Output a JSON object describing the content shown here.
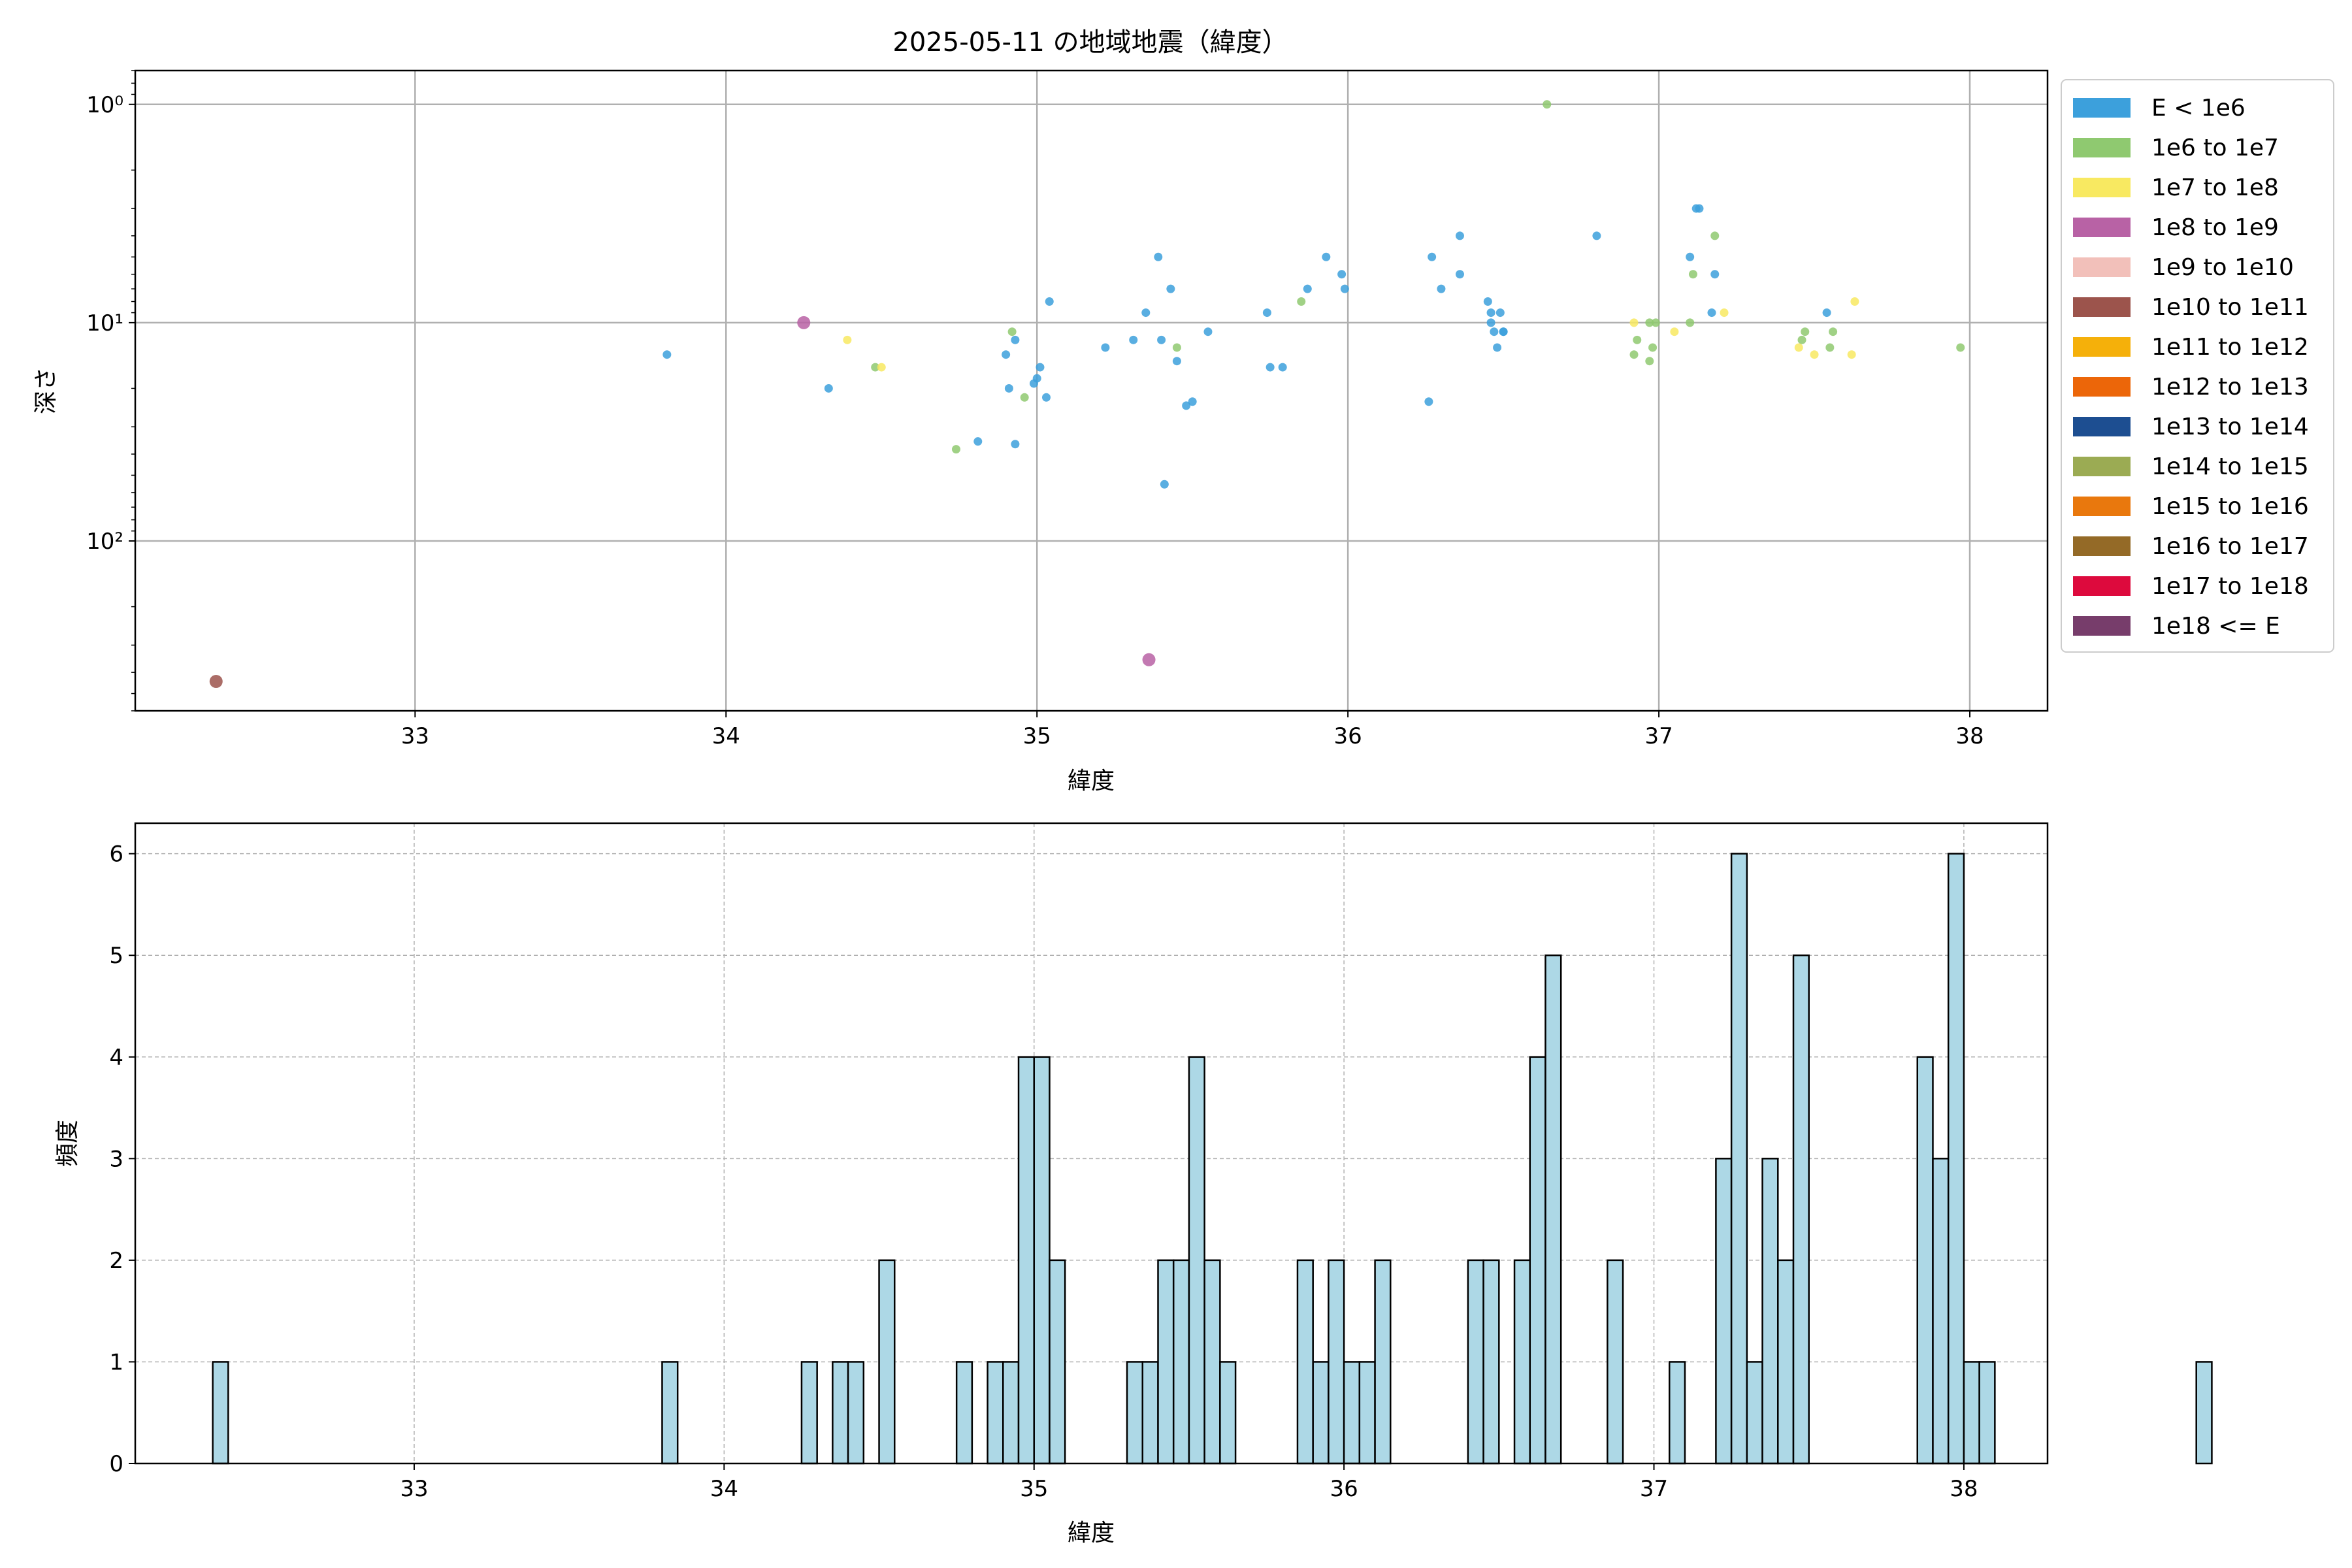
{
  "figure": {
    "title": "2025-05-11 の地域地震（緯度）"
  },
  "chart_data": [
    {
      "type": "scatter",
      "title": "2025-05-11 の地域地震（緯度）",
      "xlabel": "緯度",
      "ylabel": "深さ",
      "xlim": [
        32.1,
        38.25
      ],
      "y_scale": "log",
      "y_inverted": true,
      "ylim": [
        600,
        0.7
      ],
      "x_ticks": [
        33,
        34,
        35,
        36,
        37,
        38
      ],
      "y_ticks": [
        {
          "value": 1,
          "label": "10⁰"
        },
        {
          "value": 10,
          "label": "10¹"
        },
        {
          "value": 100,
          "label": "10²"
        }
      ],
      "grid": true,
      "legend": {
        "placement": "outside-right",
        "entries": [
          {
            "label": "E < 1e6",
            "color": "#3ca0dc"
          },
          {
            "label": "1e6 to 1e7",
            "color": "#8fc970"
          },
          {
            "label": "1e7 to 1e8",
            "color": "#f8e961"
          },
          {
            "label": "1e8 to 1e9",
            "color": "#b862a5"
          },
          {
            "label": "1e9 to 1e10",
            "color": "#f2c0ba"
          },
          {
            "label": "1e10 to 1e11",
            "color": "#9c544c"
          },
          {
            "label": "1e11 to 1e12",
            "color": "#f5b00a"
          },
          {
            "label": "1e12 to 1e13",
            "color": "#ec6609"
          },
          {
            "label": "1e13 to 1e14",
            "color": "#1d4e91"
          },
          {
            "label": "1e14 to 1e15",
            "color": "#9bab53"
          },
          {
            "label": "1e15 to 1e16",
            "color": "#e9780d"
          },
          {
            "label": "1e16 to 1e17",
            "color": "#946a27"
          },
          {
            "label": "1e17 to 1e18",
            "color": "#dd0a3d"
          },
          {
            "label": "1e18 <= E",
            "color": "#773d6b"
          }
        ]
      },
      "series": [
        {
          "category": 0,
          "points": [
            [
              33.81,
              14
            ],
            [
              34.33,
              20
            ],
            [
              34.81,
              35
            ],
            [
              34.9,
              14
            ],
            [
              34.91,
              20
            ],
            [
              34.93,
              12
            ],
            [
              34.93,
              36
            ],
            [
              34.99,
              19
            ],
            [
              35.0,
              18
            ],
            [
              35.01,
              16
            ],
            [
              35.03,
              22
            ],
            [
              35.04,
              8
            ],
            [
              35.22,
              13
            ],
            [
              35.31,
              12
            ],
            [
              35.35,
              9
            ],
            [
              35.39,
              5
            ],
            [
              35.4,
              12
            ],
            [
              35.41,
              55
            ],
            [
              35.43,
              7
            ],
            [
              35.45,
              15
            ],
            [
              35.48,
              24
            ],
            [
              35.5,
              23
            ],
            [
              35.55,
              11
            ],
            [
              35.74,
              9
            ],
            [
              35.75,
              16
            ],
            [
              35.79,
              16
            ],
            [
              35.87,
              7
            ],
            [
              35.93,
              5
            ],
            [
              35.98,
              6
            ],
            [
              35.99,
              7
            ],
            [
              36.26,
              23
            ],
            [
              36.27,
              5
            ],
            [
              36.3,
              7
            ],
            [
              36.36,
              4
            ],
            [
              36.36,
              6
            ],
            [
              36.45,
              8
            ],
            [
              36.46,
              9
            ],
            [
              36.46,
              10
            ],
            [
              36.47,
              11
            ],
            [
              36.48,
              13
            ],
            [
              36.49,
              9
            ],
            [
              36.5,
              11
            ],
            [
              36.5,
              11
            ],
            [
              36.8,
              4
            ],
            [
              37.1,
              5
            ],
            [
              37.12,
              3
            ],
            [
              37.13,
              3
            ],
            [
              37.17,
              9
            ],
            [
              37.18,
              6
            ],
            [
              37.54,
              9
            ]
          ]
        },
        {
          "category": 1,
          "points": [
            [
              34.48,
              16
            ],
            [
              34.74,
              38
            ],
            [
              34.92,
              11
            ],
            [
              34.96,
              22
            ],
            [
              35.45,
              13
            ],
            [
              35.85,
              8
            ],
            [
              36.64,
              1
            ],
            [
              36.92,
              14
            ],
            [
              36.93,
              12
            ],
            [
              36.97,
              15
            ],
            [
              36.97,
              10
            ],
            [
              36.98,
              13
            ],
            [
              36.99,
              10
            ],
            [
              37.1,
              10
            ],
            [
              37.11,
              6
            ],
            [
              37.18,
              4
            ],
            [
              37.46,
              12
            ],
            [
              37.47,
              11
            ],
            [
              37.55,
              13
            ],
            [
              37.56,
              11
            ],
            [
              37.97,
              13
            ]
          ]
        },
        {
          "category": 2,
          "points": [
            [
              34.39,
              12
            ],
            [
              34.5,
              16
            ],
            [
              36.92,
              10
            ],
            [
              37.05,
              11
            ],
            [
              37.21,
              9
            ],
            [
              37.45,
              13
            ],
            [
              37.5,
              14
            ],
            [
              37.62,
              14
            ],
            [
              37.63,
              8
            ]
          ]
        },
        {
          "category": 3,
          "points": [
            [
              34.25,
              10
            ],
            [
              35.36,
              350
            ]
          ]
        },
        {
          "category": 5,
          "points": [
            [
              32.36,
              440
            ]
          ]
        }
      ]
    },
    {
      "type": "bar",
      "xlabel": "緯度",
      "ylabel": "頻度",
      "xlim": [
        32.1,
        38.27
      ],
      "ylim": [
        0,
        6.3
      ],
      "x_ticks": [
        33,
        34,
        35,
        36,
        37,
        38
      ],
      "y_ticks": [
        0,
        1,
        2,
        3,
        4,
        5,
        6
      ],
      "grid": true,
      "bin_start": 32.35,
      "bin_width": 0.05,
      "counts": [
        1,
        0,
        0,
        0,
        0,
        0,
        0,
        0,
        0,
        0,
        0,
        0,
        0,
        0,
        0,
        0,
        0,
        0,
        0,
        0,
        0,
        0,
        0,
        0,
        0,
        0,
        0,
        0,
        0,
        1,
        0,
        0,
        0,
        0,
        0,
        0,
        0,
        0,
        1,
        0,
        1,
        1,
        0,
        2,
        0,
        0,
        0,
        0,
        1,
        0,
        1,
        1,
        4,
        4,
        2,
        0,
        0,
        0,
        0,
        1,
        1,
        2,
        2,
        4,
        2,
        1,
        0,
        0,
        0,
        0,
        2,
        1,
        2,
        1,
        1,
        2,
        0,
        0,
        0,
        0,
        0,
        2,
        2,
        0,
        2,
        4,
        5,
        0,
        0,
        0,
        2,
        0,
        0,
        0,
        1,
        0,
        0,
        3,
        6,
        1,
        3,
        2,
        5,
        0,
        0,
        0,
        0,
        0,
        0,
        0,
        4,
        3,
        6,
        1,
        1,
        0,
        0,
        0,
        0,
        0,
        0,
        0,
        0,
        0,
        0,
        0,
        0,
        0,
        1
      ],
      "bar_color": "#add8e6"
    }
  ]
}
